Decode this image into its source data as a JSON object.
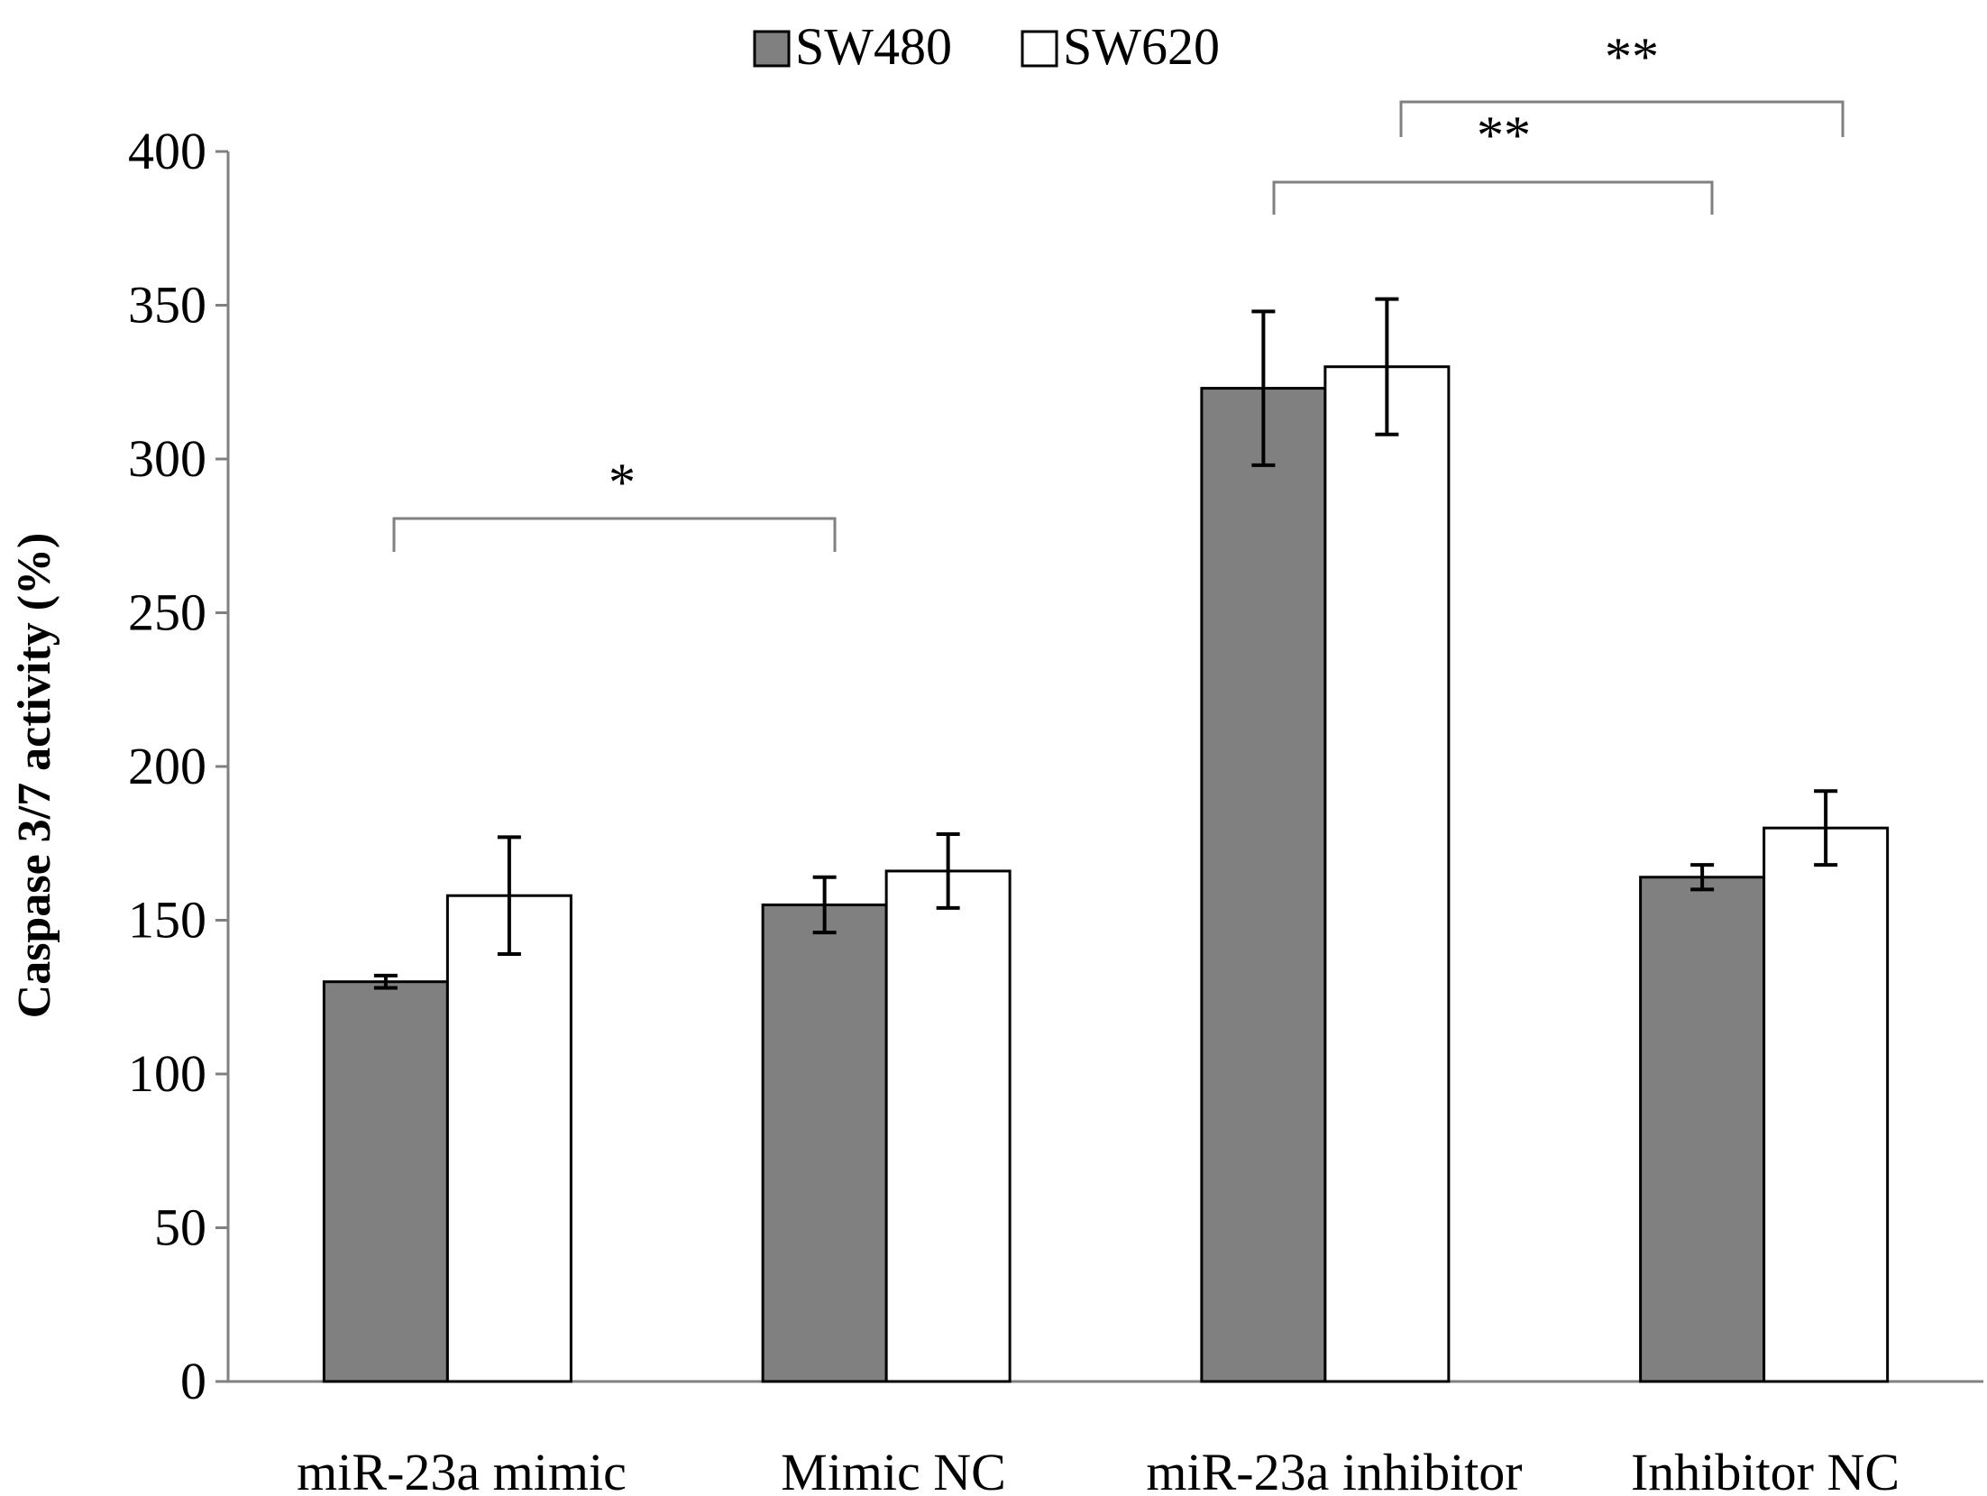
{
  "chart_data": {
    "type": "bar",
    "title": "",
    "xlabel": "",
    "ylabel": "Caspase 3/7 activity (%)",
    "ylim": [
      0,
      400
    ],
    "yticks": [
      0,
      50,
      100,
      150,
      200,
      250,
      300,
      350,
      400
    ],
    "grid": false,
    "legend_position": "top-center",
    "categories": [
      "miR-23a mimic",
      "Mimic NC",
      "miR-23a inhibitor",
      "Inhibitor NC"
    ],
    "series": [
      {
        "name": "SW480",
        "color": "#808080",
        "values": [
          130,
          155,
          323,
          164
        ],
        "errors": [
          2,
          9,
          25,
          4
        ]
      },
      {
        "name": "SW620",
        "color": "#ffffff",
        "values": [
          158,
          166,
          330,
          180
        ],
        "errors": [
          19,
          12,
          22,
          12
        ]
      }
    ],
    "annotations": [
      {
        "label": "*",
        "from_category": 0,
        "to_category": 1
      },
      {
        "label": "**",
        "from_category": 2,
        "to_category": 3
      },
      {
        "label": "**",
        "from_category": 2,
        "to_category": 3
      }
    ]
  }
}
